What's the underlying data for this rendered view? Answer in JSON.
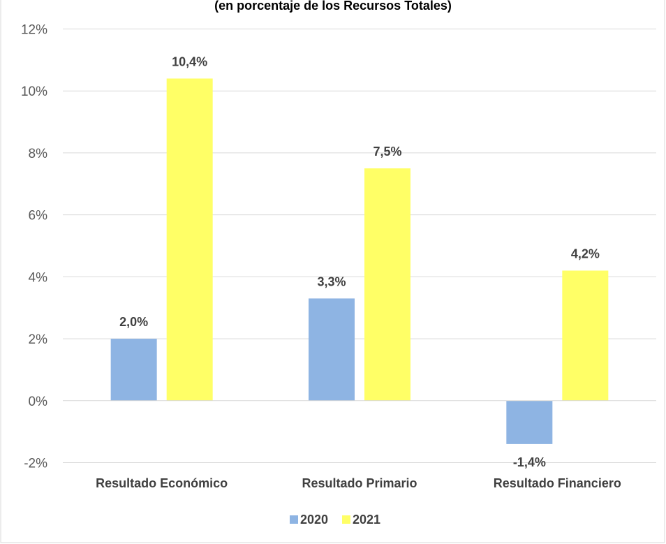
{
  "chart_data": {
    "type": "bar",
    "title": "(en porcentaje de los Recursos Totales)",
    "categories": [
      "Resultado Económico",
      "Resultado Primario",
      "Resultado Financiero"
    ],
    "series": [
      {
        "name": "2020",
        "color": "#8EB4E3",
        "values": [
          2.0,
          3.3,
          -1.4
        ],
        "labels": [
          "2,0%",
          "3,3%",
          "-1,4%"
        ]
      },
      {
        "name": "2021",
        "color": "#FFFF66",
        "values": [
          10.4,
          7.5,
          4.2
        ],
        "labels": [
          "10,4%",
          "7,5%",
          "4,2%"
        ]
      }
    ],
    "ylim": [
      -2,
      12
    ],
    "yticks": [
      12,
      10,
      8,
      6,
      4,
      2,
      0,
      -2
    ],
    "ytick_labels": [
      "12%",
      "10%",
      "8%",
      "6%",
      "4%",
      "2%",
      "0%",
      "-2%"
    ],
    "grid": true,
    "legend": "bottom-center",
    "xlabel": "",
    "ylabel": ""
  }
}
